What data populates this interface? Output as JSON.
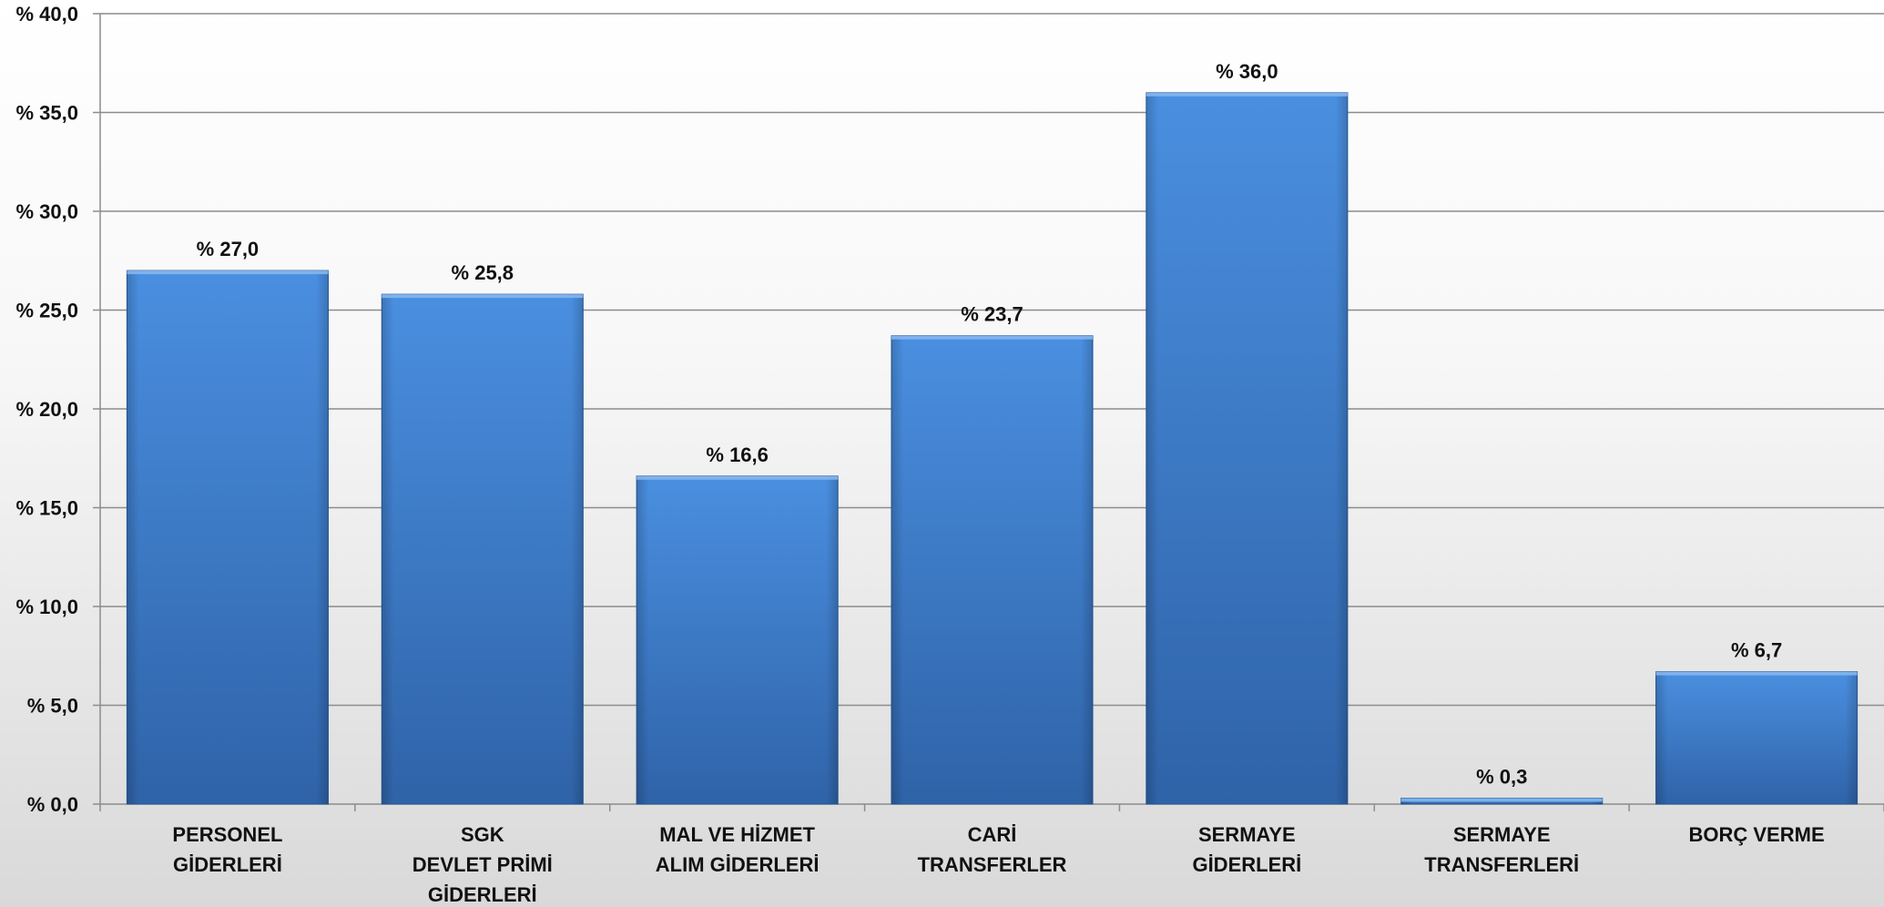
{
  "chart_data": {
    "type": "bar",
    "categories": [
      [
        "PERSONEL",
        "GİDERLERİ"
      ],
      [
        "SGK",
        "DEVLET PRİMİ",
        "GİDERLERİ"
      ],
      [
        "MAL VE HİZMET",
        "ALIM GİDERLERİ"
      ],
      [
        "CARİ",
        "TRANSFERLER"
      ],
      [
        "SERMAYE",
        "GİDERLERİ"
      ],
      [
        "SERMAYE",
        "TRANSFERLERİ"
      ],
      [
        "BORÇ VERME"
      ]
    ],
    "values": [
      27.0,
      25.8,
      16.6,
      23.7,
      36.0,
      0.3,
      6.7
    ],
    "data_labels": [
      "% 27,0",
      "% 25,8",
      "% 16,6",
      "% 23,7",
      "% 36,0",
      "% 0,3",
      "% 6,7"
    ],
    "ylim": [
      0,
      40
    ],
    "yticks": [
      0,
      5,
      10,
      15,
      20,
      25,
      30,
      35,
      40
    ],
    "ytick_labels": [
      "% 0,0",
      "% 5,0",
      "% 10,0",
      "% 15,0",
      "% 20,0",
      "% 25,0",
      "% 30,0",
      "% 35,0",
      "% 40,0"
    ],
    "grid": true,
    "bar_color": "#3d7ccf",
    "title": "",
    "xlabel": "",
    "ylabel": ""
  }
}
